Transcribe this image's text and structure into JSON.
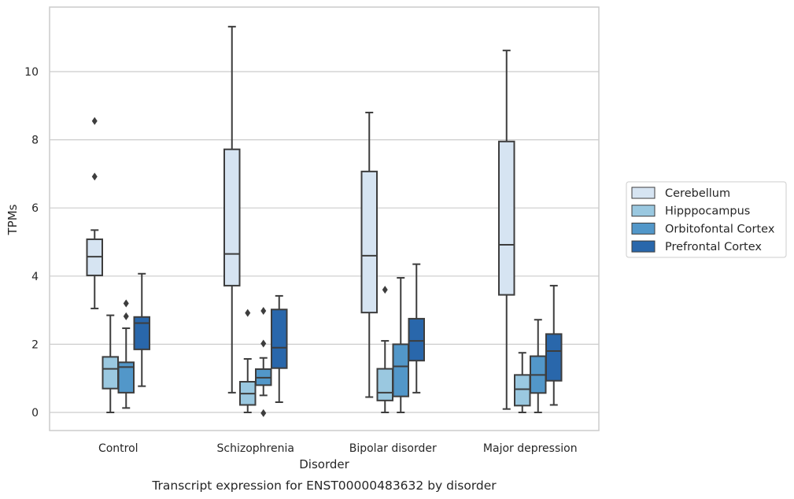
{
  "chart_data": {
    "type": "box",
    "xlabel": "Disorder",
    "ylabel": "TPMs",
    "caption": "Transcript expression for ENST00000483632 by disorder",
    "categories": [
      "Control",
      "Schizophrenia",
      "Bipolar disorder",
      "Major depression"
    ],
    "ylim": [
      -0.55,
      11.9
    ],
    "yticks": [
      0,
      2,
      4,
      6,
      8,
      10
    ],
    "grid": "horizontal",
    "legend_position": "right",
    "series": [
      {
        "name": "Cerebellum",
        "color": "#d6e4f2",
        "boxes": [
          {
            "whisker_low": 3.05,
            "q1": 4.02,
            "median": 4.57,
            "q3": 5.08,
            "whisker_high": 5.35,
            "outliers": [
              6.92,
              8.55
            ]
          },
          {
            "whisker_low": 0.58,
            "q1": 3.72,
            "median": 4.65,
            "q3": 7.72,
            "whisker_high": 11.32,
            "outliers": []
          },
          {
            "whisker_low": 0.45,
            "q1": 2.93,
            "median": 4.6,
            "q3": 7.07,
            "whisker_high": 8.8,
            "outliers": []
          },
          {
            "whisker_low": 0.1,
            "q1": 3.45,
            "median": 4.92,
            "q3": 7.95,
            "whisker_high": 10.62,
            "outliers": []
          }
        ]
      },
      {
        "name": "Hipppocampus",
        "color": "#9ac8e0",
        "boxes": [
          {
            "whisker_low": 0.0,
            "q1": 0.7,
            "median": 1.28,
            "q3": 1.63,
            "whisker_high": 2.85,
            "outliers": []
          },
          {
            "whisker_low": 0.0,
            "q1": 0.22,
            "median": 0.55,
            "q3": 0.9,
            "whisker_high": 1.57,
            "outliers": [
              2.92
            ]
          },
          {
            "whisker_low": 0.0,
            "q1": 0.35,
            "median": 0.58,
            "q3": 1.28,
            "whisker_high": 2.1,
            "outliers": [
              3.6
            ]
          },
          {
            "whisker_low": 0.0,
            "q1": 0.2,
            "median": 0.68,
            "q3": 1.1,
            "whisker_high": 1.75,
            "outliers": []
          }
        ]
      },
      {
        "name": "Orbitofontal Cortex",
        "color": "#5297c9",
        "boxes": [
          {
            "whisker_low": 0.13,
            "q1": 0.58,
            "median": 1.33,
            "q3": 1.47,
            "whisker_high": 2.47,
            "outliers": [
              2.82,
              3.2
            ]
          },
          {
            "whisker_low": 0.5,
            "q1": 0.8,
            "median": 1.02,
            "q3": 1.27,
            "whisker_high": 1.6,
            "outliers": [
              -0.02,
              2.02,
              2.98
            ]
          },
          {
            "whisker_low": 0.0,
            "q1": 0.47,
            "median": 1.35,
            "q3": 2.0,
            "whisker_high": 3.95,
            "outliers": []
          },
          {
            "whisker_low": 0.0,
            "q1": 0.57,
            "median": 1.1,
            "q3": 1.65,
            "whisker_high": 2.72,
            "outliers": []
          }
        ]
      },
      {
        "name": "Prefrontal Cortex",
        "color": "#2967ab",
        "boxes": [
          {
            "whisker_low": 0.77,
            "q1": 1.85,
            "median": 2.62,
            "q3": 2.8,
            "whisker_high": 4.07,
            "outliers": []
          },
          {
            "whisker_low": 0.3,
            "q1": 1.3,
            "median": 1.9,
            "q3": 3.02,
            "whisker_high": 3.42,
            "outliers": []
          },
          {
            "whisker_low": 0.58,
            "q1": 1.52,
            "median": 2.1,
            "q3": 2.75,
            "whisker_high": 4.35,
            "outliers": []
          },
          {
            "whisker_low": 0.22,
            "q1": 0.93,
            "median": 1.8,
            "q3": 2.3,
            "whisker_high": 3.72,
            "outliers": []
          }
        ]
      }
    ]
  },
  "style": {
    "edge_color": "#3d3d3d",
    "grid_color": "#cccccc",
    "frame_color": "#cccccc"
  }
}
